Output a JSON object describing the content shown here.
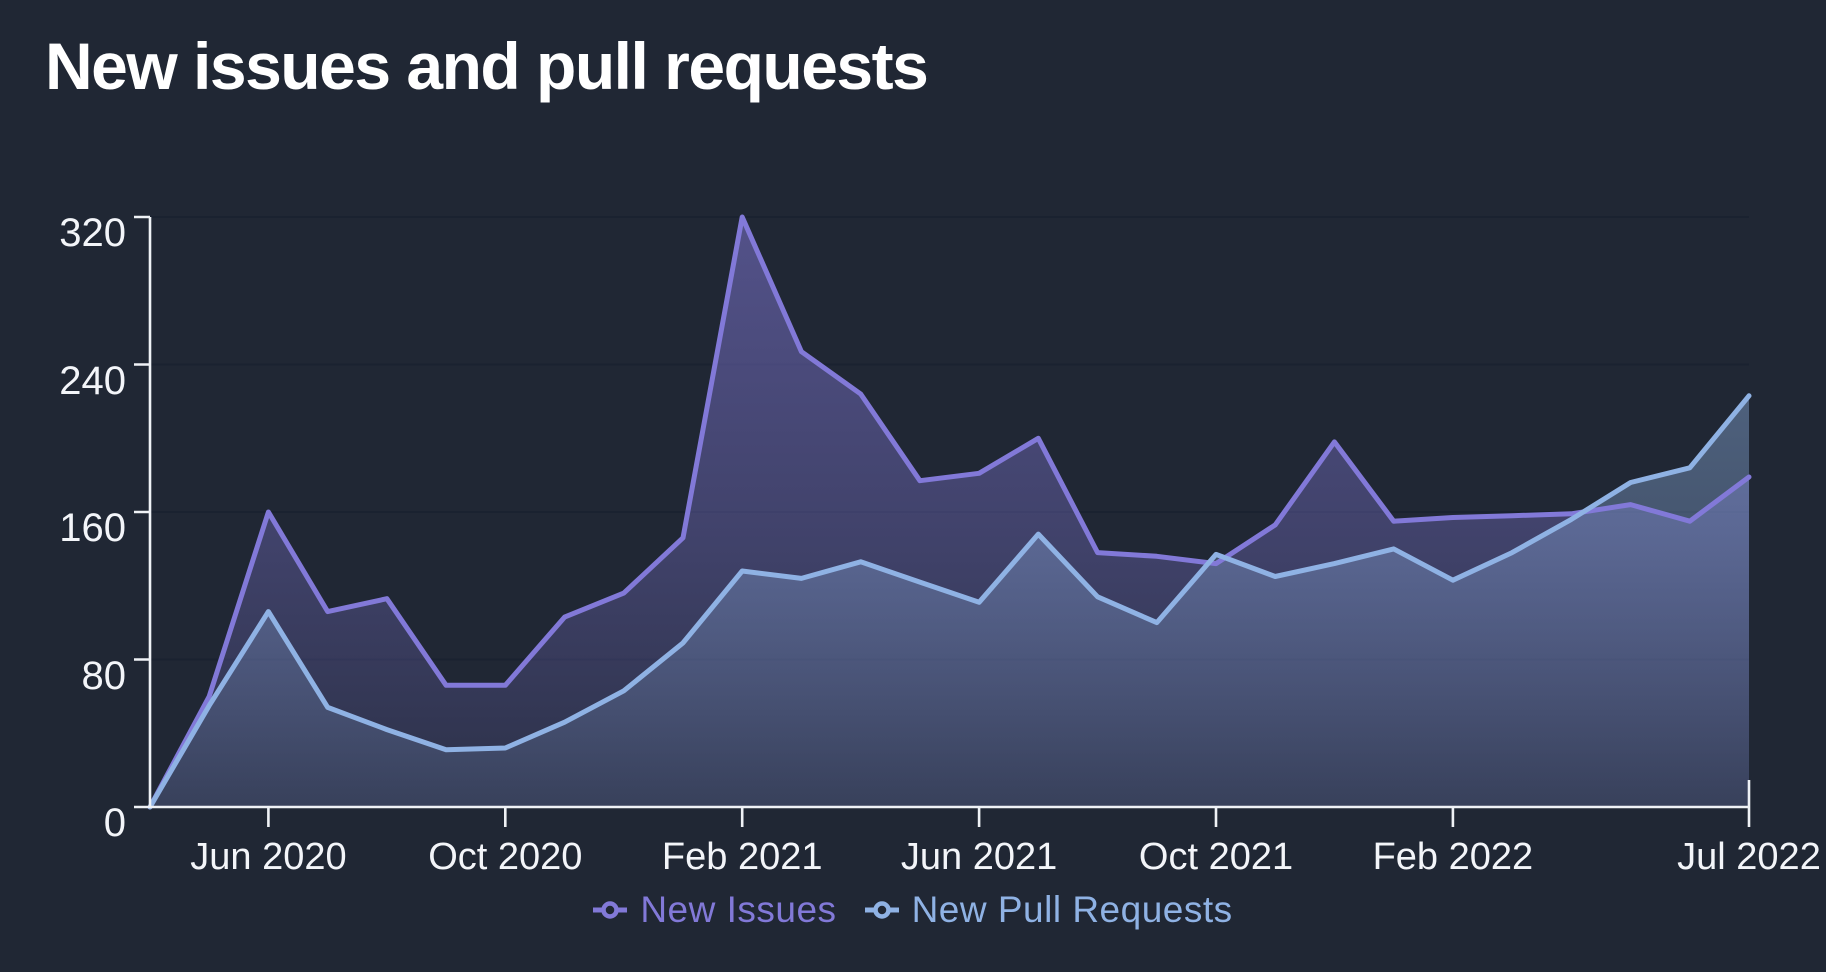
{
  "page": {
    "title": "New issues and pull requests",
    "background": "#202734"
  },
  "chart_data": {
    "type": "area",
    "title": "New issues and pull requests",
    "xlabel": "",
    "ylabel": "",
    "x": [
      "Apr 2020",
      "May 2020",
      "Jun 2020",
      "Jul 2020",
      "Aug 2020",
      "Sep 2020",
      "Oct 2020",
      "Nov 2020",
      "Dec 2020",
      "Jan 2021",
      "Feb 2021",
      "Mar 2021",
      "Apr 2021",
      "May 2021",
      "Jun 2021",
      "Jul 2021",
      "Aug 2021",
      "Sep 2021",
      "Oct 2021",
      "Nov 2021",
      "Dec 2021",
      "Jan 2022",
      "Feb 2022",
      "Mar 2022",
      "Apr 2022",
      "May 2022",
      "Jun 2022",
      "Jul 2022"
    ],
    "series": [
      {
        "name": "New Issues",
        "color": "#8279D8",
        "values": [
          0,
          60,
          160,
          106,
          113,
          66,
          66,
          103,
          116,
          146,
          320,
          247,
          224,
          177,
          181,
          200,
          138,
          136,
          132,
          153,
          198,
          155,
          157,
          158,
          159,
          164,
          155,
          179
        ]
      },
      {
        "name": "New Pull Requests",
        "color": "#8FB2E4",
        "values": [
          0,
          55,
          106,
          54,
          42,
          31,
          32,
          46,
          63,
          89,
          128,
          124,
          133,
          122,
          111,
          148,
          114,
          100,
          137,
          125,
          132,
          140,
          123,
          138,
          156,
          176,
          184,
          223
        ]
      }
    ],
    "ylim": [
      0,
      320
    ],
    "y_ticks": [
      "0",
      "80",
      "160",
      "240",
      "320"
    ],
    "x_tick_labels": [
      "Jun 2020",
      "Oct 2020",
      "Feb 2021",
      "Jun 2021",
      "Oct 2021",
      "Feb 2022",
      "Jul 2022"
    ],
    "x_tick_indices": [
      2,
      6,
      10,
      14,
      18,
      22,
      27
    ],
    "grid": "horizontal",
    "legend_position": "bottom",
    "axis_color": "#EFF2F6",
    "grid_color": "#1A2230",
    "text_color": "#F3F5F9"
  }
}
